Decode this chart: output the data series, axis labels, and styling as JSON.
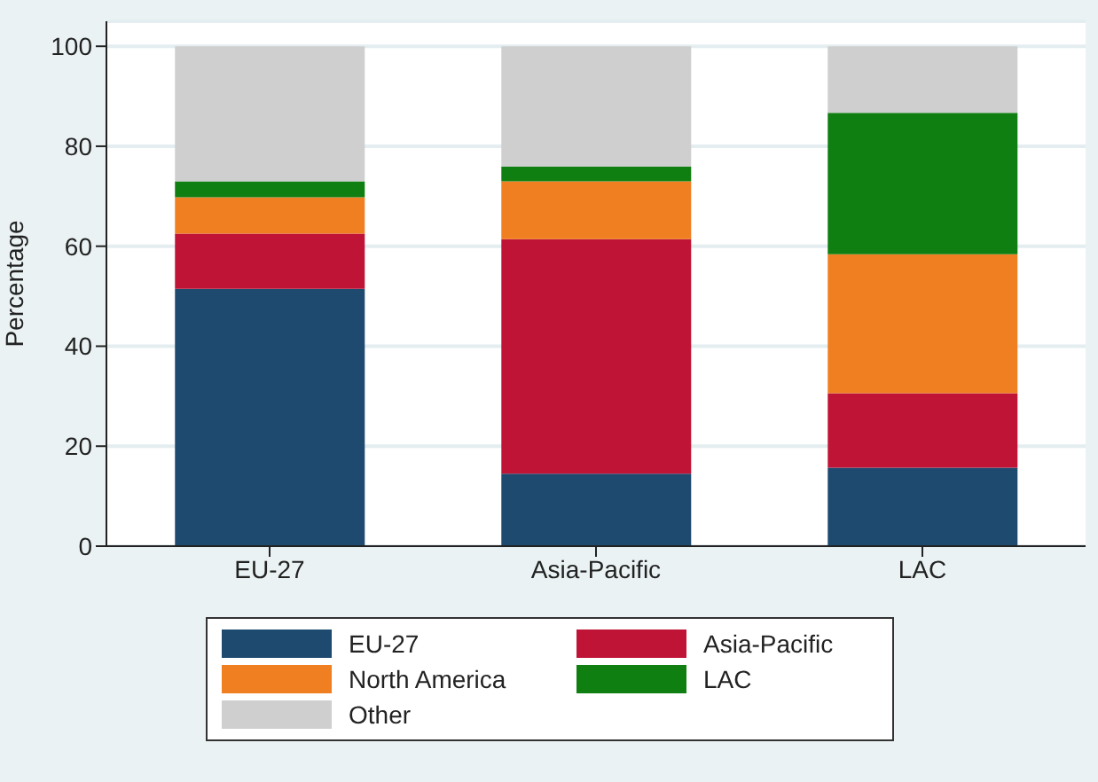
{
  "chart_data": {
    "type": "bar",
    "stacked": true,
    "ylabel": "Percentage",
    "categories": [
      "EU-27",
      "Asia-Pacific",
      "LAC"
    ],
    "series": [
      {
        "name": "EU-27",
        "color": "#1f4a70",
        "values": [
          51.5,
          14.5,
          15.7
        ]
      },
      {
        "name": "Asia-Pacific",
        "color": "#c01436",
        "values": [
          11.0,
          46.9,
          14.9
        ]
      },
      {
        "name": "North America",
        "color": "#f07f22",
        "values": [
          7.3,
          11.6,
          27.8
        ]
      },
      {
        "name": "LAC",
        "color": "#107f12",
        "values": [
          3.2,
          2.9,
          28.3
        ]
      },
      {
        "name": "Other",
        "color": "#cfcfcf",
        "values": [
          27.0,
          24.1,
          13.3
        ]
      }
    ],
    "ylim": [
      0,
      105
    ],
    "yticks": [
      0,
      20,
      40,
      60,
      80,
      100
    ],
    "grid": "y",
    "legend": "bottom"
  }
}
